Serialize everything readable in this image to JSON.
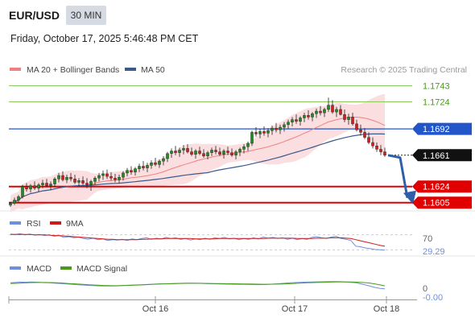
{
  "header": {
    "symbol": "EUR/USD",
    "timeframe": "30 MIN",
    "datetime": "Friday, October 17, 2025 5:46:48 PM CET"
  },
  "credit": "Research © 2025 Trading Central",
  "colors": {
    "resistance": "#8cc85a",
    "pivot": "#2255c8",
    "support": "#e00000",
    "candle_up": "#1e8c1e",
    "candle_down": "#d21e1e",
    "ma20": "#f08080",
    "bands_fill": "#fadadd",
    "ma50": "#3a5a8c",
    "rsi": "#6f8fdc",
    "rsi_ma": "#d01818",
    "macd": "#6f8fdc",
    "macd_signal": "#4a9a1a",
    "arrow": "#2e5fa8"
  },
  "chart_data": [
    {
      "type": "candlestick",
      "title": "EUR/USD",
      "legend": [
        {
          "name": "MA 20 + Bollinger Bands",
          "color": "#f08080"
        },
        {
          "name": "MA 50",
          "color": "#3a5a8c"
        }
      ],
      "ylim": [
        1.16,
        1.1752
      ],
      "x_ticks": [
        "Oct 16",
        "Oct 17",
        "Oct 18"
      ],
      "levels": [
        {
          "label": "1.1743",
          "value": 1.1743,
          "kind": "resistance"
        },
        {
          "label": "1.1724",
          "value": 1.1724,
          "kind": "resistance"
        },
        {
          "label": "1.1692",
          "value": 1.1692,
          "kind": "pivot"
        },
        {
          "label": "1.1661",
          "value": 1.1661,
          "kind": "last"
        },
        {
          "label": "1.1624",
          "value": 1.1624,
          "kind": "support"
        },
        {
          "label": "1.1605",
          "value": 1.1605,
          "kind": "support"
        }
      ],
      "forecast": {
        "from": 1.1661,
        "to": 1.1605
      },
      "ohlc": [
        [
          1.1602,
          1.1606,
          1.16,
          1.1604
        ],
        [
          1.1604,
          1.1611,
          1.1602,
          1.1608
        ],
        [
          1.1608,
          1.1614,
          1.1605,
          1.1612
        ],
        [
          1.1612,
          1.1626,
          1.161,
          1.1624
        ],
        [
          1.1624,
          1.1628,
          1.1618,
          1.1621
        ],
        [
          1.1621,
          1.1627,
          1.1617,
          1.1625
        ],
        [
          1.1625,
          1.163,
          1.162,
          1.1622
        ],
        [
          1.1622,
          1.1628,
          1.1618,
          1.1626
        ],
        [
          1.1626,
          1.1632,
          1.1622,
          1.1628
        ],
        [
          1.1628,
          1.1633,
          1.1623,
          1.1625
        ],
        [
          1.1625,
          1.163,
          1.162,
          1.1627
        ],
        [
          1.1627,
          1.1635,
          1.1623,
          1.1633
        ],
        [
          1.1633,
          1.164,
          1.1629,
          1.1637
        ],
        [
          1.1637,
          1.1642,
          1.163,
          1.1632
        ],
        [
          1.1632,
          1.1638,
          1.1628,
          1.1635
        ],
        [
          1.1635,
          1.164,
          1.163,
          1.1633
        ],
        [
          1.1633,
          1.1638,
          1.1627,
          1.1629
        ],
        [
          1.1629,
          1.1634,
          1.1624,
          1.1631
        ],
        [
          1.1631,
          1.1636,
          1.1626,
          1.1628
        ],
        [
          1.1628,
          1.1634,
          1.1622,
          1.1626
        ],
        [
          1.1626,
          1.1632,
          1.1619,
          1.163
        ],
        [
          1.163,
          1.1636,
          1.1626,
          1.1634
        ],
        [
          1.1634,
          1.164,
          1.163,
          1.1637
        ],
        [
          1.1637,
          1.1643,
          1.1632,
          1.1639
        ],
        [
          1.1639,
          1.1644,
          1.1633,
          1.1636
        ],
        [
          1.1636,
          1.1641,
          1.1631,
          1.1634
        ],
        [
          1.1634,
          1.1639,
          1.1629,
          1.1632
        ],
        [
          1.1632,
          1.1638,
          1.1628,
          1.1635
        ],
        [
          1.1635,
          1.1642,
          1.1631,
          1.164
        ],
        [
          1.164,
          1.1646,
          1.1636,
          1.1643
        ],
        [
          1.1643,
          1.1648,
          1.1638,
          1.1641
        ],
        [
          1.1641,
          1.1647,
          1.1637,
          1.1645
        ],
        [
          1.1645,
          1.1651,
          1.1641,
          1.1648
        ],
        [
          1.1648,
          1.1654,
          1.1643,
          1.1646
        ],
        [
          1.1646,
          1.1652,
          1.1641,
          1.1649
        ],
        [
          1.1649,
          1.1655,
          1.1645,
          1.1652
        ],
        [
          1.1652,
          1.1658,
          1.1648,
          1.165
        ],
        [
          1.165,
          1.1656,
          1.1646,
          1.1654
        ],
        [
          1.1654,
          1.166,
          1.1649,
          1.1657
        ],
        [
          1.1657,
          1.1665,
          1.1653,
          1.1663
        ],
        [
          1.1663,
          1.1669,
          1.1658,
          1.1666
        ],
        [
          1.1666,
          1.1672,
          1.1661,
          1.1664
        ],
        [
          1.1664,
          1.167,
          1.1659,
          1.1667
        ],
        [
          1.1667,
          1.1673,
          1.1662,
          1.1669
        ],
        [
          1.1669,
          1.1674,
          1.1663,
          1.1665
        ],
        [
          1.1665,
          1.167,
          1.166,
          1.1662
        ],
        [
          1.1662,
          1.1668,
          1.1657,
          1.1666
        ],
        [
          1.1666,
          1.1671,
          1.1661,
          1.1663
        ],
        [
          1.1663,
          1.1668,
          1.1658,
          1.166
        ],
        [
          1.166,
          1.1666,
          1.1656,
          1.1664
        ],
        [
          1.1664,
          1.167,
          1.166,
          1.1667
        ],
        [
          1.1667,
          1.1672,
          1.1662,
          1.1665
        ],
        [
          1.1665,
          1.167,
          1.166,
          1.1662
        ],
        [
          1.1662,
          1.1668,
          1.1657,
          1.1666
        ],
        [
          1.1666,
          1.1671,
          1.1661,
          1.1664
        ],
        [
          1.1664,
          1.1669,
          1.1659,
          1.1661
        ],
        [
          1.1661,
          1.1667,
          1.1656,
          1.1665
        ],
        [
          1.1665,
          1.167,
          1.166,
          1.1668
        ],
        [
          1.1668,
          1.1674,
          1.1663,
          1.1671
        ],
        [
          1.1671,
          1.1677,
          1.1666,
          1.1675
        ],
        [
          1.1675,
          1.169,
          1.1672,
          1.1688
        ],
        [
          1.1688,
          1.1694,
          1.1683,
          1.1686
        ],
        [
          1.1686,
          1.1692,
          1.1681,
          1.1689
        ],
        [
          1.1689,
          1.1695,
          1.1684,
          1.1687
        ],
        [
          1.1687,
          1.1693,
          1.1682,
          1.169
        ],
        [
          1.169,
          1.1696,
          1.1685,
          1.1693
        ],
        [
          1.1693,
          1.1699,
          1.1688,
          1.1691
        ],
        [
          1.1691,
          1.1697,
          1.1686,
          1.1694
        ],
        [
          1.1694,
          1.17,
          1.1689,
          1.1697
        ],
        [
          1.1697,
          1.1703,
          1.1692,
          1.17
        ],
        [
          1.17,
          1.1706,
          1.1695,
          1.1703
        ],
        [
          1.1703,
          1.1709,
          1.1698,
          1.1701
        ],
        [
          1.1701,
          1.1707,
          1.1696,
          1.1705
        ],
        [
          1.1705,
          1.1711,
          1.17,
          1.1708
        ],
        [
          1.1708,
          1.1714,
          1.1703,
          1.1706
        ],
        [
          1.1706,
          1.1712,
          1.1701,
          1.171
        ],
        [
          1.171,
          1.1716,
          1.1705,
          1.1713
        ],
        [
          1.1713,
          1.1719,
          1.1708,
          1.1711
        ],
        [
          1.1711,
          1.1717,
          1.1706,
          1.1715
        ],
        [
          1.1715,
          1.1729,
          1.1712,
          1.172
        ],
        [
          1.172,
          1.1726,
          1.171,
          1.1712
        ],
        [
          1.1712,
          1.1718,
          1.1706,
          1.1715
        ],
        [
          1.1715,
          1.172,
          1.1708,
          1.1709
        ],
        [
          1.1709,
          1.1715,
          1.17,
          1.1703
        ],
        [
          1.1703,
          1.171,
          1.1697,
          1.1706
        ],
        [
          1.1706,
          1.1711,
          1.1696,
          1.1698
        ],
        [
          1.1698,
          1.1703,
          1.1689,
          1.1691
        ],
        [
          1.1691,
          1.1697,
          1.1684,
          1.1688
        ],
        [
          1.1688,
          1.1693,
          1.168,
          1.1682
        ],
        [
          1.1682,
          1.1688,
          1.1674,
          1.1676
        ],
        [
          1.1676,
          1.1682,
          1.1669,
          1.1672
        ],
        [
          1.1672,
          1.1676,
          1.1665,
          1.1668
        ],
        [
          1.1668,
          1.1673,
          1.1661,
          1.1665
        ],
        [
          1.1665,
          1.167,
          1.1659,
          1.1661
        ]
      ]
    },
    {
      "type": "line",
      "title": "RSI",
      "legend": [
        {
          "name": "RSI",
          "color": "#6f8fdc"
        },
        {
          "name": "9MA",
          "color": "#d01818"
        }
      ],
      "ylim": [
        20,
        80
      ],
      "levels": [
        {
          "label": "70",
          "value": 70
        }
      ],
      "last_value_label": "29.29",
      "series": [
        {
          "name": "RSI",
          "values": [
            72,
            71,
            73,
            70,
            72,
            69,
            71,
            68,
            70,
            66,
            68,
            63,
            65,
            62,
            64,
            60,
            58,
            61,
            57,
            59,
            55,
            57,
            56,
            58,
            55,
            59,
            57,
            60,
            62,
            58,
            61,
            59,
            63,
            60,
            62,
            58,
            60,
            56,
            59,
            57,
            61,
            58,
            62,
            60,
            63,
            59,
            61,
            57,
            60,
            58,
            62,
            59,
            64,
            61,
            63,
            60,
            62,
            58,
            61,
            57,
            60,
            58,
            63,
            65,
            62,
            60,
            64,
            66,
            60,
            58,
            55,
            40,
            38,
            35,
            33,
            31,
            30,
            29.29
          ]
        },
        {
          "name": "9MA",
          "values": [
            71,
            71,
            71,
            71,
            71,
            70,
            70,
            70,
            69,
            68,
            68,
            67,
            66,
            65,
            64,
            63,
            62,
            61,
            60,
            59,
            58,
            58,
            57,
            57,
            57,
            57,
            57,
            58,
            58,
            59,
            59,
            59,
            60,
            60,
            60,
            60,
            60,
            60,
            59,
            59,
            59,
            59,
            59,
            60,
            60,
            60,
            60,
            60,
            60,
            60,
            60,
            60,
            60,
            61,
            61,
            61,
            61,
            61,
            61,
            60,
            60,
            60,
            60,
            61,
            61,
            61,
            62,
            62,
            62,
            61,
            60,
            57,
            54,
            51,
            48,
            45,
            42,
            39.5
          ]
        }
      ]
    },
    {
      "type": "line",
      "title": "MACD",
      "legend": [
        {
          "name": "MACD",
          "color": "#6f8fdc"
        },
        {
          "name": "MACD Signal",
          "color": "#4a9a1a"
        }
      ],
      "levels": [
        {
          "label": "0",
          "value": 0
        }
      ],
      "last_value_label": "-0.00",
      "ylim": [
        -0.0015,
        0.0015
      ],
      "series": [
        {
          "name": "MACD",
          "values": [
            0.0005,
            0.00055,
            0.0006,
            0.00058,
            0.00062,
            0.0006,
            0.00057,
            0.00053,
            0.0005,
            0.00046,
            0.00042,
            0.00038,
            0.00033,
            0.00028,
            0.00024,
            0.0002,
            0.00016,
            0.00013,
            0.0001,
            8e-05,
            7e-05,
            8e-05,
            0.0001,
            0.00013,
            0.00017,
            0.0002,
            0.00022,
            0.00025,
            0.00028,
            0.00031,
            0.00034,
            0.00036,
            0.00038,
            0.0004,
            0.00042,
            0.00044,
            0.00045,
            0.00046,
            0.00044,
            0.00043,
            0.00041,
            0.00039,
            0.00037,
            0.00035,
            0.00033,
            0.00032,
            0.00031,
            0.0003,
            0.00029,
            0.00028,
            0.00027,
            0.00026,
            0.00027,
            0.00029,
            0.00033,
            0.00038,
            0.00043,
            0.00048,
            0.00052,
            0.00055,
            0.00058,
            0.0006,
            0.00062,
            0.00063,
            0.00064,
            0.00065,
            0.00066,
            0.00066,
            0.00065,
            0.00062,
            0.00057,
            0.0005,
            0.00038,
            0.00022,
            5e-05,
            -0.00012,
            -0.00025,
            -0.0003
          ]
        },
        {
          "name": "MACD Signal",
          "values": [
            0.0004,
            0.00043,
            0.00046,
            0.00049,
            0.00052,
            0.00054,
            0.00055,
            0.00055,
            0.00054,
            0.00052,
            0.00049,
            0.00045,
            0.00041,
            0.00037,
            0.00033,
            0.00029,
            0.00025,
            0.00021,
            0.00018,
            0.00015,
            0.00013,
            0.00012,
            0.00012,
            0.00013,
            0.00015,
            0.00017,
            0.0002,
            0.00023,
            0.00026,
            0.00029,
            0.00032,
            0.00034,
            0.00036,
            0.00038,
            0.0004,
            0.00042,
            0.00043,
            0.00044,
            0.00044,
            0.00044,
            0.00043,
            0.00042,
            0.00041,
            0.0004,
            0.00039,
            0.00038,
            0.00037,
            0.00036,
            0.00035,
            0.00034,
            0.00033,
            0.00032,
            0.00031,
            0.00031,
            0.00032,
            0.00033,
            0.00035,
            0.00038,
            0.00041,
            0.00044,
            0.00047,
            0.0005,
            0.00053,
            0.00055,
            0.00057,
            0.00059,
            0.0006,
            0.00061,
            0.00062,
            0.00062,
            0.00061,
            0.0006,
            0.00057,
            0.00052,
            0.00045,
            0.00035,
            0.00022,
            0.0001
          ]
        }
      ]
    }
  ]
}
